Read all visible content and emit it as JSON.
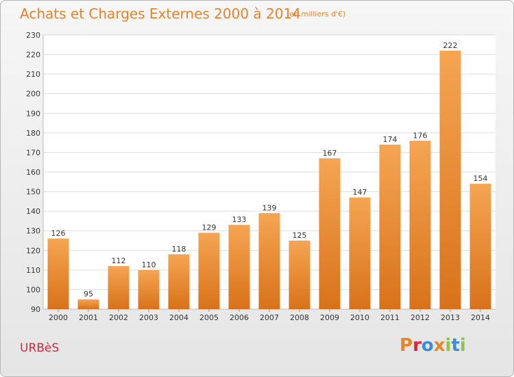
{
  "chart_data": {
    "type": "bar",
    "title": "Achats et Charges Externes 2000 à 2014",
    "subtitle": "(en milliers d'€)",
    "categories": [
      "2000",
      "2001",
      "2002",
      "2003",
      "2004",
      "2005",
      "2006",
      "2007",
      "2008",
      "2009",
      "2010",
      "2011",
      "2012",
      "2013",
      "2014"
    ],
    "values": [
      126,
      95,
      112,
      110,
      118,
      129,
      133,
      139,
      125,
      167,
      147,
      174,
      176,
      222,
      154
    ],
    "ylim": [
      90,
      230
    ],
    "yticks": [
      90,
      100,
      110,
      120,
      130,
      140,
      150,
      160,
      170,
      180,
      190,
      200,
      210,
      220,
      230
    ],
    "grid": true,
    "bar_color": "#f0963c",
    "bar_color_dark": "#d97418"
  },
  "footer": {
    "commune": "URBèS",
    "brand": "Proxiti",
    "brand_colors": [
      "#e8832a",
      "#d9263f",
      "#3a8ed8",
      "#e8832a",
      "#8cc63f",
      "#3a8ed8",
      "#8cc63f"
    ]
  }
}
